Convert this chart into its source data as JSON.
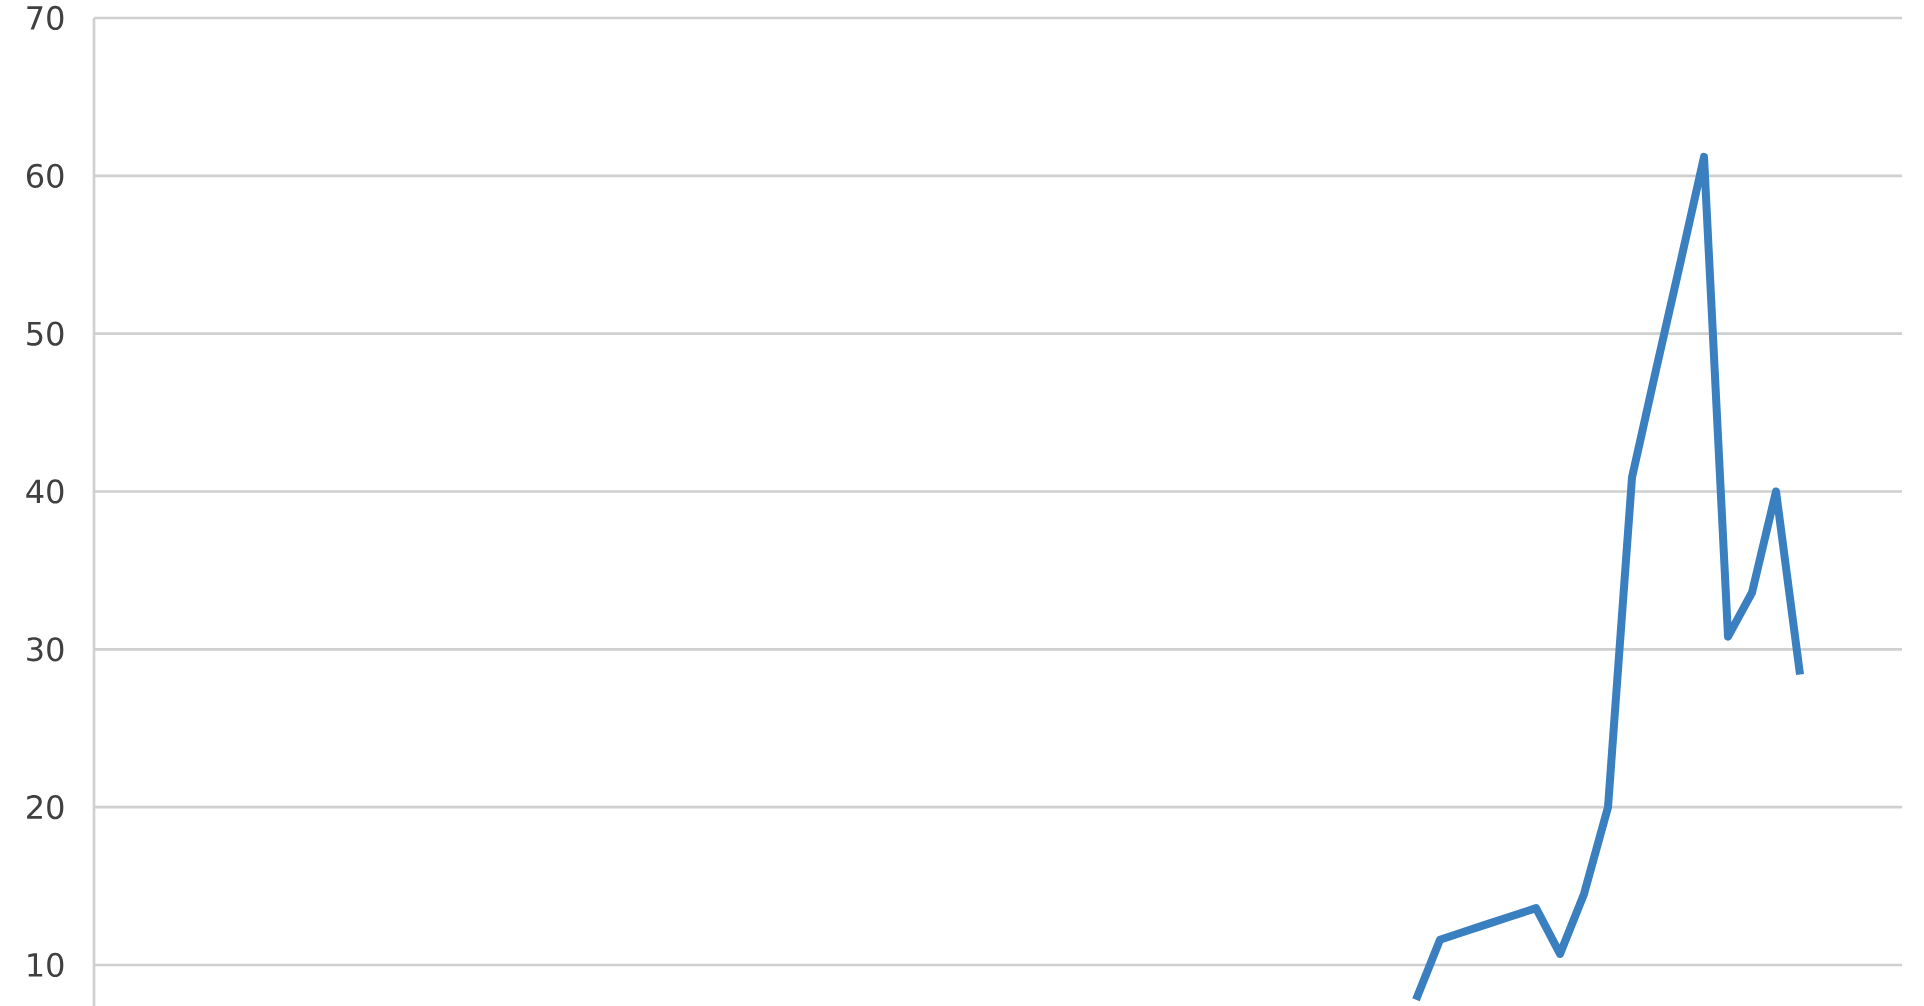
{
  "chart_data": {
    "type": "line",
    "categories": [
      null,
      null,
      null,
      null,
      null,
      null,
      null,
      null,
      null,
      null,
      null,
      null,
      null,
      null,
      null,
      null,
      null,
      null,
      null,
      null,
      null,
      null,
      null,
      null,
      null,
      null,
      null,
      null,
      null,
      null,
      null,
      null,
      null,
      null,
      null,
      null,
      null,
      null,
      null,
      null,
      null,
      null,
      null,
      null,
      null,
      null,
      null,
      null,
      null,
      null,
      null,
      null,
      null,
      null,
      null,
      null,
      null,
      null,
      null,
      null,
      null,
      null,
      null,
      null,
      null,
      null,
      null,
      null,
      null,
      null,
      null,
      null,
      null,
      null,
      null,
      null
    ],
    "values": [
      null,
      null,
      null,
      null,
      null,
      null,
      null,
      null,
      null,
      null,
      null,
      null,
      null,
      null,
      null,
      null,
      null,
      null,
      null,
      null,
      null,
      null,
      null,
      null,
      null,
      null,
      null,
      null,
      null,
      null,
      null,
      null,
      null,
      null,
      null,
      null,
      null,
      null,
      null,
      null,
      null,
      null,
      null,
      null,
      null,
      null,
      null,
      null,
      null,
      null,
      null,
      null,
      null,
      null,
      null,
      7.8,
      11.6,
      12.1,
      12.6,
      13.1,
      13.6,
      10.7,
      14.5,
      20.0,
      40.9,
      47.7,
      54.4,
      61.2,
      30.8,
      33.6,
      40.0,
      28.4,
      null,
      null,
      null,
      null
    ],
    "color": "#3a7fc0",
    "ylim": [
      7.4,
      70
    ],
    "yticks": [
      10,
      20,
      30,
      40,
      50,
      60,
      70
    ],
    "grid": "y",
    "tick_labels": "y",
    "line_style": "solid"
  }
}
